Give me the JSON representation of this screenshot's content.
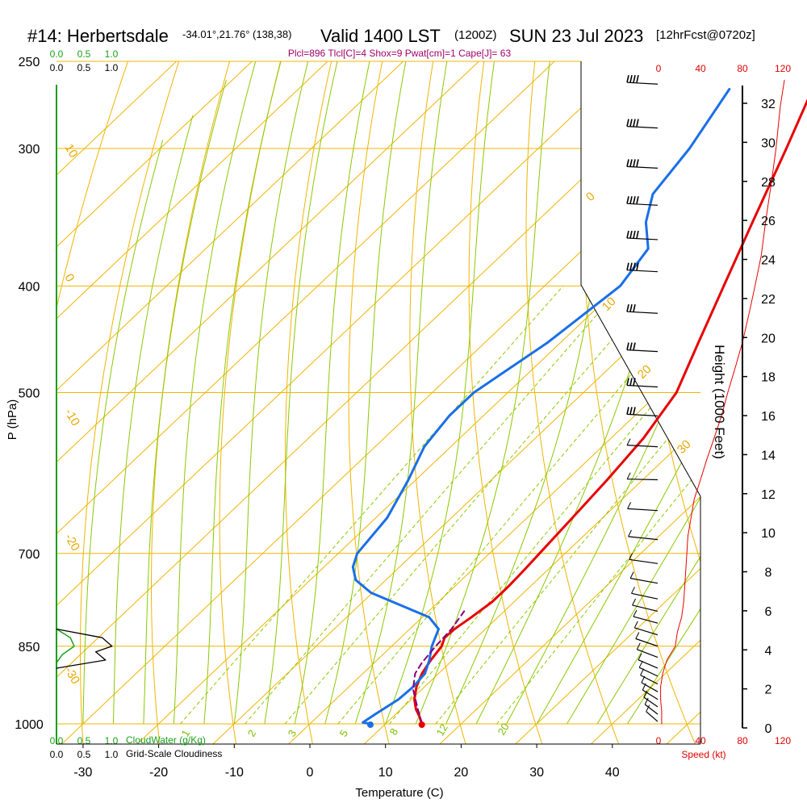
{
  "header": {
    "station": "#14: Herbertsdale",
    "coords": "-34.01°,21.76° (138,38)",
    "valid": "Valid 1400 LST",
    "zulu": "(1200Z)",
    "date": "SUN 23 Jul 2023",
    "forecast": "[12hrFcst@0720z]",
    "params": "Plcl=896 Tlcl[C]=4 Shox=9 Pwat[cm]=1 Cape[J]= 63"
  },
  "colors": {
    "isotherm": "#f0b400",
    "dry_adiabat": "#f0b400",
    "moist_adiabat": "#8cc800",
    "mixing_ratio": "#8cc800",
    "temperature": "#e80000",
    "dewpoint": "#1a6fe8",
    "parcel": "#800080",
    "cloud_water": "#1aa01a",
    "cloudiness": "#000000",
    "speed": "#e80000"
  },
  "chart_data": {
    "type": "line",
    "xlabel": "Temperature (C)",
    "ylabel": "P (hPa)",
    "xlim": [
      -33,
      45
    ],
    "ylim": [
      1000,
      250
    ],
    "temperature_ticks": [
      "-30",
      "-20",
      "-10",
      "0",
      "10",
      "20",
      "30",
      "40"
    ],
    "pressure_ticks": [
      "250",
      "300",
      "400",
      "500",
      "700",
      "850",
      "1000"
    ],
    "height_label": "Height (1000 Feet)",
    "height_ticks": [
      "0",
      "2",
      "4",
      "6",
      "8",
      "10",
      "12",
      "14",
      "16",
      "18",
      "20",
      "22",
      "24",
      "26",
      "28",
      "30",
      "32"
    ],
    "speed_label": "Speed (kt)",
    "speed_ticks": [
      "0",
      "40",
      "80",
      "120"
    ],
    "cloud_water_label": "CloudWater (g/Kg)",
    "cloudiness_label": "Grid-Scale Cloudiness",
    "scale_ticks": [
      "0.0",
      "0.5",
      "1.0"
    ],
    "dry_adiabat_labels": [
      "10",
      "0",
      "-10",
      "-20",
      "-30"
    ],
    "moist_adiabat_labels": [
      "0",
      "10",
      "20",
      "30"
    ],
    "mixing_ratio_labels": [
      "1",
      "2",
      "3",
      "5",
      "8",
      "12",
      "20"
    ],
    "series": [
      {
        "role": "temperature",
        "points": [
          [
            1000,
            14.8
          ],
          [
            985,
            13.5
          ],
          [
            970,
            12.0
          ],
          [
            950,
            10.4
          ],
          [
            925,
            8.9
          ],
          [
            900,
            7.8
          ],
          [
            875,
            7.1
          ],
          [
            850,
            6.6
          ],
          [
            835,
            5.8
          ],
          [
            820,
            5.9
          ],
          [
            800,
            6.5
          ],
          [
            775,
            7.1
          ],
          [
            750,
            7.1
          ],
          [
            725,
            6.9
          ],
          [
            700,
            6.6
          ],
          [
            650,
            6.0
          ],
          [
            600,
            5.3
          ],
          [
            550,
            4.3
          ],
          [
            500,
            2.3
          ],
          [
            450,
            -1.8
          ],
          [
            400,
            -6.3
          ],
          [
            350,
            -11.4
          ],
          [
            300,
            -17.2
          ],
          [
            265,
            -22.0
          ]
        ]
      },
      {
        "role": "dewpoint",
        "points": [
          [
            1000,
            8.0
          ],
          [
            997,
            6.8
          ],
          [
            980,
            7.3
          ],
          [
            950,
            8.3
          ],
          [
            925,
            8.5
          ],
          [
            900,
            8.2
          ],
          [
            875,
            6.9
          ],
          [
            850,
            5.3
          ],
          [
            820,
            3.8
          ],
          [
            800,
            0.9
          ],
          [
            760,
            -10.2
          ],
          [
            740,
            -14.0
          ],
          [
            720,
            -16.2
          ],
          [
            700,
            -17.5
          ],
          [
            650,
            -18.5
          ],
          [
            600,
            -21.0
          ],
          [
            560,
            -23.5
          ],
          [
            525,
            -24.5
          ],
          [
            500,
            -24.5
          ],
          [
            450,
            -21.7
          ],
          [
            400,
            -20.0
          ],
          [
            370,
            -21.5
          ],
          [
            350,
            -25.5
          ],
          [
            330,
            -28.5
          ],
          [
            300,
            -30.0
          ],
          [
            265,
            -33.0
          ]
        ]
      },
      {
        "role": "parcel",
        "points": [
          [
            1000,
            14.8
          ],
          [
            960,
            11.4
          ],
          [
            930,
            8.8
          ],
          [
            900,
            6.9
          ],
          [
            880,
            6.3
          ],
          [
            850,
            5.8
          ],
          [
            820,
            5.5
          ],
          [
            790,
            4.7
          ]
        ]
      }
    ],
    "surface_temperature": 14.8,
    "surface_dewpoint": 8.0,
    "speed_profile_kt": [
      [
        1000,
        3
      ],
      [
        975,
        3
      ],
      [
        950,
        2
      ],
      [
        925,
        2
      ],
      [
        900,
        4
      ],
      [
        875,
        8
      ],
      [
        850,
        16
      ],
      [
        825,
        18
      ],
      [
        800,
        22
      ],
      [
        775,
        24
      ],
      [
        750,
        25
      ],
      [
        725,
        26
      ],
      [
        700,
        27
      ],
      [
        675,
        28
      ],
      [
        650,
        31
      ],
      [
        625,
        34
      ],
      [
        600,
        40
      ],
      [
        575,
        46
      ],
      [
        550,
        53
      ],
      [
        525,
        60
      ],
      [
        500,
        66
      ],
      [
        475,
        73
      ],
      [
        450,
        80
      ],
      [
        425,
        86
      ],
      [
        400,
        92
      ],
      [
        375,
        98
      ],
      [
        350,
        102
      ],
      [
        325,
        107
      ],
      [
        300,
        112
      ],
      [
        275,
        116
      ],
      [
        260,
        120
      ]
    ],
    "cloud_water_profile": [
      [
        820,
        0.0
      ],
      [
        835,
        0.35
      ],
      [
        850,
        0.45
      ],
      [
        865,
        0.15
      ],
      [
        880,
        0.0
      ]
    ],
    "cloudiness_profile": [
      [
        820,
        0.0
      ],
      [
        835,
        0.7
      ],
      [
        850,
        0.85
      ],
      [
        860,
        0.6
      ],
      [
        875,
        0.75
      ],
      [
        890,
        0.0
      ]
    ],
    "wind_barb_levels": [
      260,
      285,
      310,
      335,
      360,
      385,
      420,
      455,
      490,
      525,
      560,
      600,
      640,
      680,
      715,
      745,
      770,
      790,
      810,
      830,
      850,
      870,
      890,
      905,
      920,
      935,
      950,
      965,
      980,
      995
    ]
  }
}
